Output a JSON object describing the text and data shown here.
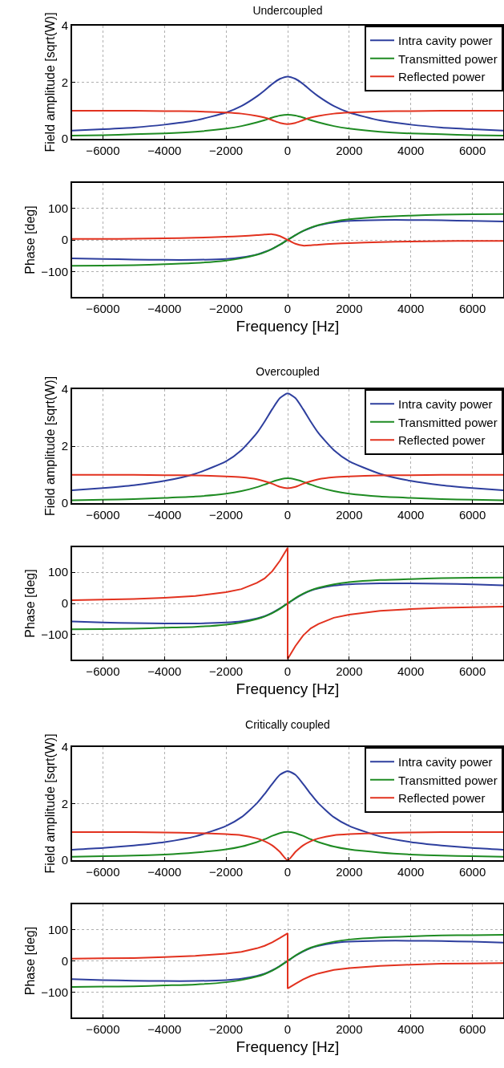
{
  "chart_data": [
    {
      "type": "line",
      "title": "Undercoupled",
      "ylabel": "Field amplitude [sqrt(W)]",
      "x": [
        -7000,
        -6000,
        -5000,
        -4000,
        -3000,
        -2000,
        -1500,
        -1000,
        -750,
        -500,
        -250,
        0,
        250,
        500,
        750,
        1000,
        1500,
        2000,
        3000,
        4000,
        5000,
        6000,
        7000
      ],
      "xlim": [
        -7000,
        7000
      ],
      "xticks": [
        -6000,
        -4000,
        -2000,
        0,
        2000,
        4000,
        6000
      ],
      "ylim": [
        0,
        4
      ],
      "yticks": [
        0,
        2,
        4
      ],
      "grid": true,
      "legend": "top right",
      "line_style": "solid",
      "marker": "none",
      "series": [
        {
          "name": "Intra cavity power",
          "color": "#2e3f9e",
          "values": [
            0.29,
            0.34,
            0.4,
            0.5,
            0.65,
            0.93,
            1.16,
            1.5,
            1.71,
            1.94,
            2.12,
            2.2,
            2.12,
            1.94,
            1.71,
            1.5,
            1.16,
            0.93,
            0.65,
            0.5,
            0.4,
            0.34,
            0.29
          ]
        },
        {
          "name": "Transmitted power",
          "color": "#1e8b22",
          "values": [
            0.11,
            0.13,
            0.16,
            0.19,
            0.25,
            0.36,
            0.45,
            0.58,
            0.66,
            0.75,
            0.82,
            0.85,
            0.82,
            0.75,
            0.66,
            0.58,
            0.45,
            0.36,
            0.25,
            0.19,
            0.16,
            0.13,
            0.11
          ]
        },
        {
          "name": "Reflected power",
          "color": "#e2321f",
          "values": [
            0.99,
            0.99,
            0.99,
            0.98,
            0.97,
            0.93,
            0.89,
            0.81,
            0.75,
            0.66,
            0.56,
            0.52,
            0.56,
            0.66,
            0.75,
            0.81,
            0.89,
            0.93,
            0.97,
            0.98,
            0.99,
            0.99,
            0.99
          ]
        }
      ]
    },
    {
      "type": "line",
      "xlabel": "Frequency [Hz]",
      "ylabel": "Phase [deg]",
      "x": [
        -7000,
        -6000,
        -5000,
        -4000,
        -3000,
        -2000,
        -1500,
        -1000,
        -750,
        -500,
        -250,
        0,
        250,
        500,
        750,
        1000,
        1500,
        2000,
        3000,
        4000,
        5000,
        6000,
        7000
      ],
      "xlim": [
        -7000,
        7000
      ],
      "xticks": [
        -6000,
        -4000,
        -2000,
        0,
        2000,
        4000,
        6000
      ],
      "ylim": [
        -180,
        180
      ],
      "yticks": [
        -100,
        0,
        100
      ],
      "grid": true,
      "line_style": "solid",
      "marker": "none",
      "series": [
        {
          "color": "#2e3f9e",
          "values": [
            -58,
            -60,
            -62,
            -63,
            -63,
            -60,
            -55,
            -46,
            -38,
            -28,
            -15,
            0,
            15,
            28,
            38,
            46,
            55,
            60,
            63,
            63,
            62,
            60,
            58
          ]
        },
        {
          "color": "#1e8b22",
          "values": [
            -82,
            -81,
            -80,
            -77,
            -73,
            -65,
            -58,
            -47,
            -39,
            -28,
            -15,
            0,
            15,
            28,
            39,
            47,
            58,
            65,
            73,
            77,
            80,
            81,
            82
          ]
        },
        {
          "color": "#e2321f",
          "values": [
            3,
            3,
            4,
            5,
            7,
            10,
            12,
            15,
            17,
            18,
            12,
            0,
            -12,
            -18,
            -17,
            -15,
            -12,
            -10,
            -7,
            -5,
            -4,
            -3,
            -3
          ]
        }
      ]
    },
    {
      "type": "line",
      "title": "Overcoupled",
      "ylabel": "Field amplitude [sqrt(W)]",
      "x": [
        -7000,
        -6000,
        -5000,
        -4000,
        -3000,
        -2000,
        -1500,
        -1000,
        -750,
        -500,
        -250,
        0,
        250,
        500,
        750,
        1000,
        1500,
        2000,
        3000,
        4000,
        5000,
        6000,
        7000
      ],
      "xlim": [
        -7000,
        7000
      ],
      "xticks": [
        -6000,
        -4000,
        -2000,
        0,
        2000,
        4000,
        6000
      ],
      "ylim": [
        0,
        4
      ],
      "yticks": [
        0,
        2,
        4
      ],
      "grid": true,
      "legend": "top right",
      "line_style": "solid",
      "marker": "none",
      "series": [
        {
          "name": "Intra cavity power",
          "color": "#2e3f9e",
          "values": [
            0.45,
            0.53,
            0.63,
            0.78,
            1.03,
            1.47,
            1.86,
            2.46,
            2.86,
            3.3,
            3.69,
            3.85,
            3.69,
            3.3,
            2.86,
            2.46,
            1.86,
            1.47,
            1.03,
            0.78,
            0.63,
            0.53,
            0.45
          ]
        },
        {
          "name": "Transmitted power",
          "color": "#1e8b22",
          "values": [
            0.1,
            0.12,
            0.14,
            0.18,
            0.23,
            0.33,
            0.42,
            0.56,
            0.65,
            0.75,
            0.83,
            0.87,
            0.83,
            0.75,
            0.65,
            0.56,
            0.42,
            0.33,
            0.23,
            0.18,
            0.14,
            0.12,
            0.1
          ]
        },
        {
          "name": "Reflected power",
          "color": "#e2321f",
          "values": [
            0.99,
            0.99,
            0.99,
            0.98,
            0.97,
            0.94,
            0.91,
            0.84,
            0.77,
            0.68,
            0.57,
            0.52,
            0.57,
            0.68,
            0.77,
            0.84,
            0.91,
            0.94,
            0.97,
            0.98,
            0.99,
            0.99,
            0.99
          ]
        }
      ]
    },
    {
      "type": "line",
      "xlabel": "Frequency [Hz]",
      "ylabel": "Phase [deg]",
      "x": [
        -7000,
        -6000,
        -5000,
        -4000,
        -3000,
        -2000,
        -1500,
        -1000,
        -750,
        -500,
        -250,
        0,
        250,
        500,
        750,
        1000,
        1500,
        2000,
        3000,
        4000,
        5000,
        6000,
        7000
      ],
      "xlim": [
        -7000,
        7000
      ],
      "xticks": [
        -6000,
        -4000,
        -2000,
        0,
        2000,
        4000,
        6000
      ],
      "ylim": [
        -180,
        180
      ],
      "yticks": [
        -100,
        0,
        100
      ],
      "grid": true,
      "line_style": "solid",
      "marker": "none",
      "series": [
        {
          "color": "#2e3f9e",
          "values": [
            -58,
            -61,
            -63,
            -64,
            -64,
            -61,
            -57,
            -48,
            -41,
            -30,
            -16,
            0,
            16,
            30,
            41,
            48,
            57,
            61,
            64,
            64,
            63,
            61,
            58
          ]
        },
        {
          "color": "#1e8b22",
          "values": [
            -83,
            -82,
            -81,
            -78,
            -75,
            -68,
            -61,
            -50,
            -42,
            -31,
            -17,
            0,
            17,
            31,
            42,
            50,
            61,
            68,
            75,
            78,
            81,
            82,
            83
          ]
        },
        {
          "color": "#e2321f",
          "x": [
            -7000,
            -6000,
            -5000,
            -4000,
            -3000,
            -2000,
            -1500,
            -1000,
            -750,
            -500,
            -250,
            0,
            0,
            250,
            500,
            750,
            1000,
            1500,
            2000,
            3000,
            4000,
            5000,
            6000,
            7000
          ],
          "values": [
            10,
            12,
            14,
            18,
            24,
            36,
            46,
            66,
            80,
            103,
            137,
            178,
            -178,
            -137,
            -103,
            -80,
            -66,
            -46,
            -36,
            -24,
            -18,
            -14,
            -12,
            -10
          ]
        }
      ]
    },
    {
      "type": "line",
      "title": "Critically coupled",
      "ylabel": "Field amplitude [sqrt(W)]",
      "x": [
        -7000,
        -6000,
        -5000,
        -4000,
        -3000,
        -2000,
        -1500,
        -1000,
        -750,
        -500,
        -250,
        0,
        250,
        500,
        750,
        1000,
        1500,
        2000,
        3000,
        4000,
        5000,
        6000,
        7000
      ],
      "xlim": [
        -7000,
        7000
      ],
      "xticks": [
        -6000,
        -4000,
        -2000,
        0,
        2000,
        4000,
        6000
      ],
      "ylim": [
        0,
        4
      ],
      "yticks": [
        0,
        2,
        4
      ],
      "grid": true,
      "legend": "top right",
      "line_style": "solid",
      "marker": "none",
      "series": [
        {
          "name": "Intra cavity power",
          "color": "#2e3f9e",
          "values": [
            0.37,
            0.43,
            0.52,
            0.64,
            0.84,
            1.21,
            1.52,
            2.01,
            2.34,
            2.7,
            3.02,
            3.15,
            3.02,
            2.7,
            2.34,
            2.01,
            1.52,
            1.21,
            0.84,
            0.64,
            0.52,
            0.43,
            0.37
          ]
        },
        {
          "name": "Transmitted power",
          "color": "#1e8b22",
          "values": [
            0.12,
            0.14,
            0.16,
            0.2,
            0.27,
            0.38,
            0.48,
            0.64,
            0.74,
            0.86,
            0.96,
            1.0,
            0.96,
            0.86,
            0.74,
            0.64,
            0.48,
            0.38,
            0.27,
            0.2,
            0.16,
            0.14,
            0.12
          ]
        },
        {
          "name": "Reflected power",
          "color": "#e2321f",
          "values": [
            0.99,
            0.99,
            0.99,
            0.98,
            0.96,
            0.92,
            0.88,
            0.77,
            0.67,
            0.52,
            0.29,
            0,
            0.29,
            0.52,
            0.67,
            0.77,
            0.88,
            0.92,
            0.96,
            0.98,
            0.99,
            0.99,
            0.99
          ]
        }
      ]
    },
    {
      "type": "line",
      "xlabel": "Frequency [Hz]",
      "ylabel": "Phase [deg]",
      "x": [
        -7000,
        -6000,
        -5000,
        -4000,
        -3000,
        -2000,
        -1500,
        -1000,
        -750,
        -500,
        -250,
        0,
        250,
        500,
        750,
        1000,
        1500,
        2000,
        3000,
        4000,
        5000,
        6000,
        7000
      ],
      "xlim": [
        -7000,
        7000
      ],
      "xticks": [
        -6000,
        -4000,
        -2000,
        0,
        2000,
        4000,
        6000
      ],
      "ylim": [
        -180,
        180
      ],
      "yticks": [
        -100,
        0,
        100
      ],
      "grid": true,
      "line_style": "solid",
      "marker": "none",
      "series": [
        {
          "color": "#2e3f9e",
          "values": [
            -58,
            -61,
            -63,
            -64,
            -64,
            -61,
            -57,
            -48,
            -41,
            -30,
            -16,
            0,
            16,
            30,
            41,
            48,
            57,
            61,
            64,
            64,
            63,
            61,
            58
          ]
        },
        {
          "color": "#1e8b22",
          "values": [
            -83,
            -82,
            -81,
            -78,
            -75,
            -68,
            -61,
            -50,
            -42,
            -31,
            -17,
            0,
            17,
            31,
            42,
            50,
            61,
            68,
            75,
            78,
            81,
            82,
            83
          ]
        },
        {
          "color": "#e2321f",
          "x": [
            -7000,
            -6000,
            -5000,
            -4000,
            -3000,
            -2000,
            -1500,
            -1000,
            -750,
            -500,
            -250,
            0,
            0,
            250,
            500,
            750,
            1000,
            1500,
            2000,
            3000,
            4000,
            5000,
            6000,
            7000
          ],
          "values": [
            7,
            8,
            9,
            12,
            16,
            23,
            29,
            40,
            48,
            59,
            73,
            88,
            -88,
            -73,
            -59,
            -48,
            -40,
            -29,
            -23,
            -16,
            -12,
            -9,
            -8,
            -7
          ]
        }
      ]
    }
  ]
}
